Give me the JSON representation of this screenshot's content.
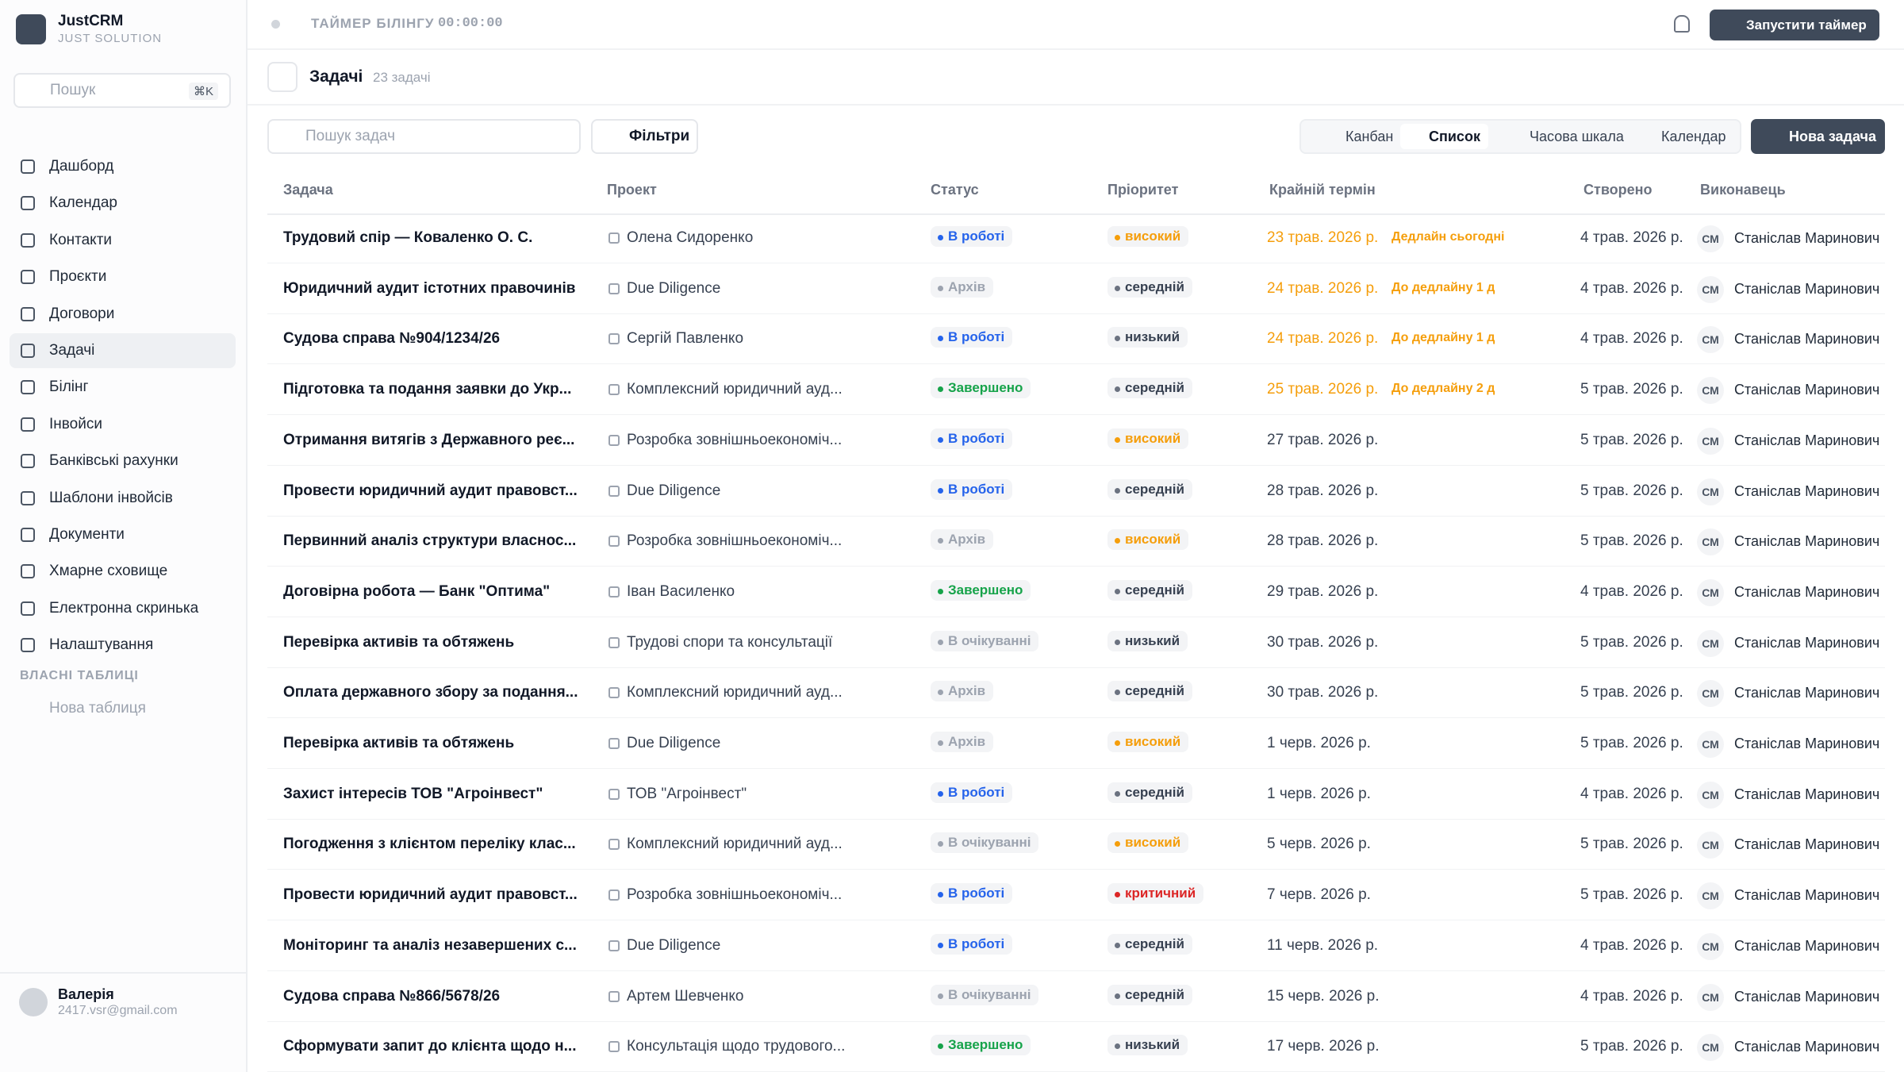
{
  "sidebar": {
    "brand": {
      "name": "JustCRM",
      "subtitle": "JUST SOLUTION"
    },
    "search": {
      "placeholder": "Пошук",
      "shortcut": "⌘K"
    },
    "nav": [
      "Дашборд",
      "Календар",
      "Контакти",
      "Проєкти",
      "Договори",
      "Задачі",
      "Білінг",
      "Інвойси",
      "Банківські рахунки",
      "Шаблони інвойсів",
      "Документи",
      "Хмарне сховище",
      "Електронна скринька",
      "Налаштування"
    ],
    "active_nav": 5,
    "section_title": "ВЛАСНІ ТАБЛИЦІ",
    "new_table": "Нова таблиця",
    "user": {
      "name": "Валерія",
      "email": "2417.vsr@gmail.com"
    }
  },
  "topbar": {
    "timer_label": "ТАЙМЕР БІЛІНГУ",
    "timer_value": "00:00:00",
    "start_button": "Запустити таймер"
  },
  "header": {
    "title": "Задачі",
    "count": "23 задачі"
  },
  "toolbar": {
    "search_placeholder": "Пошук задач",
    "filters": "Фільтри",
    "views": [
      "Канбан",
      "Список",
      "Часова шкала",
      "Календар"
    ],
    "active_view": 1,
    "new_task": "Нова задача"
  },
  "table": {
    "columns": [
      "Задача",
      "Проект",
      "Статус",
      "Пріоритет",
      "Крайній термін",
      "Створено",
      "Виконавець"
    ],
    "rows": [
      {
        "task": "Трудовий спір — Коваленко О. С.",
        "project": "Олена Сидоренко",
        "status": "В роботі",
        "status_color": "#2563eb",
        "priority": "високий",
        "priority_color": "#f59e0b",
        "deadline": "23 трав. 2026 р.",
        "deadline_note": "Дедлайн сьогодні",
        "created": "4 трав. 2026 р.",
        "assignee_initials": "СМ",
        "assignee": "Станіслав Маринович"
      },
      {
        "task": "Юридичний аудит істотних правочинів",
        "project": "Due Diligence",
        "status": "Архів",
        "status_color": "#9ca3af",
        "priority": "середній",
        "priority_color": "#6b7280",
        "deadline": "24 трав. 2026 р.",
        "deadline_note": "До дедлайну 1 д",
        "created": "4 трав. 2026 р.",
        "assignee_initials": "СМ",
        "assignee": "Станіслав Маринович"
      },
      {
        "task": "Судова справа №904/1234/26",
        "project": "Сергій Павленко",
        "status": "В роботі",
        "status_color": "#2563eb",
        "priority": "низький",
        "priority_color": "#6b7280",
        "deadline": "24 трав. 2026 р.",
        "deadline_note": "До дедлайну 1 д",
        "created": "4 трав. 2026 р.",
        "assignee_initials": "СМ",
        "assignee": "Станіслав Маринович"
      },
      {
        "task": "Підготовка та подання заявки до Укр...",
        "project": "Комплексний юридичний ауд...",
        "status": "Завершено",
        "status_color": "#16a34a",
        "priority": "середній",
        "priority_color": "#6b7280",
        "deadline": "25 трав. 2026 р.",
        "deadline_note": "До дедлайну 2 д",
        "created": "5 трав. 2026 р.",
        "assignee_initials": "СМ",
        "assignee": "Станіслав Маринович"
      },
      {
        "task": "Отримання витягів з Державного реє...",
        "project": "Розробка зовнішньоекономіч...",
        "status": "В роботі",
        "status_color": "#2563eb",
        "priority": "високий",
        "priority_color": "#f59e0b",
        "deadline": "27 трав. 2026 р.",
        "created": "5 трав. 2026 р.",
        "assignee_initials": "СМ",
        "assignee": "Станіслав Маринович"
      },
      {
        "task": "Провести юридичний аудит правовст...",
        "project": "Due Diligence",
        "status": "В роботі",
        "status_color": "#2563eb",
        "priority": "середній",
        "priority_color": "#6b7280",
        "deadline": "28 трав. 2026 р.",
        "created": "5 трав. 2026 р.",
        "assignee_initials": "СМ",
        "assignee": "Станіслав Маринович"
      },
      {
        "task": "Первинний аналіз структури власнос...",
        "project": "Розробка зовнішньоекономіч...",
        "status": "Архів",
        "status_color": "#9ca3af",
        "priority": "високий",
        "priority_color": "#f59e0b",
        "deadline": "28 трав. 2026 р.",
        "created": "5 трав. 2026 р.",
        "assignee_initials": "СМ",
        "assignee": "Станіслав Маринович"
      },
      {
        "task": "Договірна робота — Банк \"Оптима\"",
        "project": "Іван Василенко",
        "status": "Завершено",
        "status_color": "#16a34a",
        "priority": "середній",
        "priority_color": "#6b7280",
        "deadline": "29 трав. 2026 р.",
        "created": "4 трав. 2026 р.",
        "assignee_initials": "СМ",
        "assignee": "Станіслав Маринович"
      },
      {
        "task": "Перевірка активів та обтяжень",
        "project": "Трудові спори та консультації",
        "status": "В очікуванні",
        "status_color": "#9ca3af",
        "priority": "низький",
        "priority_color": "#6b7280",
        "deadline": "30 трав. 2026 р.",
        "created": "5 трав. 2026 р.",
        "assignee_initials": "СМ",
        "assignee": "Станіслав Маринович"
      },
      {
        "task": "Оплата державного збору за подання...",
        "project": "Комплексний юридичний ауд...",
        "status": "Архів",
        "status_color": "#9ca3af",
        "priority": "середній",
        "priority_color": "#6b7280",
        "deadline": "30 трав. 2026 р.",
        "created": "5 трав. 2026 р.",
        "assignee_initials": "СМ",
        "assignee": "Станіслав Маринович"
      },
      {
        "task": "Перевірка активів та обтяжень",
        "project": "Due Diligence",
        "status": "Архів",
        "status_color": "#9ca3af",
        "priority": "високий",
        "priority_color": "#f59e0b",
        "deadline": "1 черв. 2026 р.",
        "created": "5 трав. 2026 р.",
        "assignee_initials": "СМ",
        "assignee": "Станіслав Маринович"
      },
      {
        "task": "Захист інтересів ТОВ \"Агроінвест\"",
        "project": "ТОВ \"Агроінвест\"",
        "status": "В роботі",
        "status_color": "#2563eb",
        "priority": "середній",
        "priority_color": "#6b7280",
        "deadline": "1 черв. 2026 р.",
        "created": "4 трав. 2026 р.",
        "assignee_initials": "СМ",
        "assignee": "Станіслав Маринович"
      },
      {
        "task": "Погодження з клієнтом переліку клас...",
        "project": "Комплексний юридичний ауд...",
        "status": "В очікуванні",
        "status_color": "#9ca3af",
        "priority": "високий",
        "priority_color": "#f59e0b",
        "deadline": "5 черв. 2026 р.",
        "created": "5 трав. 2026 р.",
        "assignee_initials": "СМ",
        "assignee": "Станіслав Маринович"
      },
      {
        "task": "Провести юридичний аудит правовст...",
        "project": "Розробка зовнішньоекономіч...",
        "status": "В роботі",
        "status_color": "#2563eb",
        "priority": "критичний",
        "priority_color": "#dc2626",
        "deadline": "7 черв. 2026 р.",
        "created": "5 трав. 2026 р.",
        "assignee_initials": "СМ",
        "assignee": "Станіслав Маринович"
      },
      {
        "task": "Моніторинг та аналіз незавершених с...",
        "project": "Due Diligence",
        "status": "В роботі",
        "status_color": "#2563eb",
        "priority": "середній",
        "priority_color": "#6b7280",
        "deadline": "11 черв. 2026 р.",
        "created": "4 трав. 2026 р.",
        "assignee_initials": "СМ",
        "assignee": "Станіслав Маринович"
      },
      {
        "task": "Судова справа №866/5678/26",
        "project": "Артем Шевченко",
        "status": "В очікуванні",
        "status_color": "#9ca3af",
        "priority": "середній",
        "priority_color": "#6b7280",
        "deadline": "15 черв. 2026 р.",
        "created": "4 трав. 2026 р.",
        "assignee_initials": "СМ",
        "assignee": "Станіслав Маринович"
      },
      {
        "task": "Сформувати запит до клієнта щодо н...",
        "project": "Консультація щодо трудового...",
        "status": "Завершено",
        "status_color": "#16a34a",
        "priority": "низький",
        "priority_color": "#6b7280",
        "deadline": "17 черв. 2026 р.",
        "created": "5 трав. 2026 р.",
        "assignee_initials": "СМ",
        "assignee": "Станіслав Маринович"
      }
    ]
  }
}
